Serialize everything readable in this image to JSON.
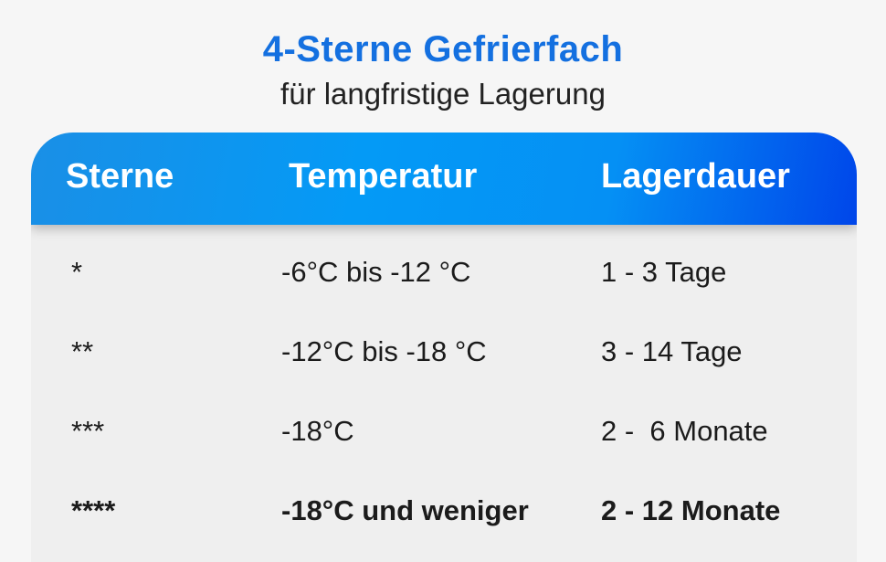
{
  "title": "4-Sterne Gefrierfach",
  "subtitle": "für langfristige Lagerung",
  "table": {
    "headers": [
      "Sterne",
      "Temperatur",
      "Lagerdauer"
    ],
    "rows": [
      [
        "*",
        "-6°C bis -12 °C",
        "1 - 3 Tage"
      ],
      [
        "**",
        "-12°C bis -18 °C",
        "3 - 14 Tage"
      ],
      [
        "***",
        "-18°C",
        "2 -  6 Monate"
      ],
      [
        "****",
        "-18°C und weniger",
        "2 - 12 Monate"
      ]
    ]
  },
  "colors": {
    "accent": "#1470e0",
    "header_gradient": [
      "#1a8fe6",
      "#049af6",
      "#0046ea"
    ]
  }
}
